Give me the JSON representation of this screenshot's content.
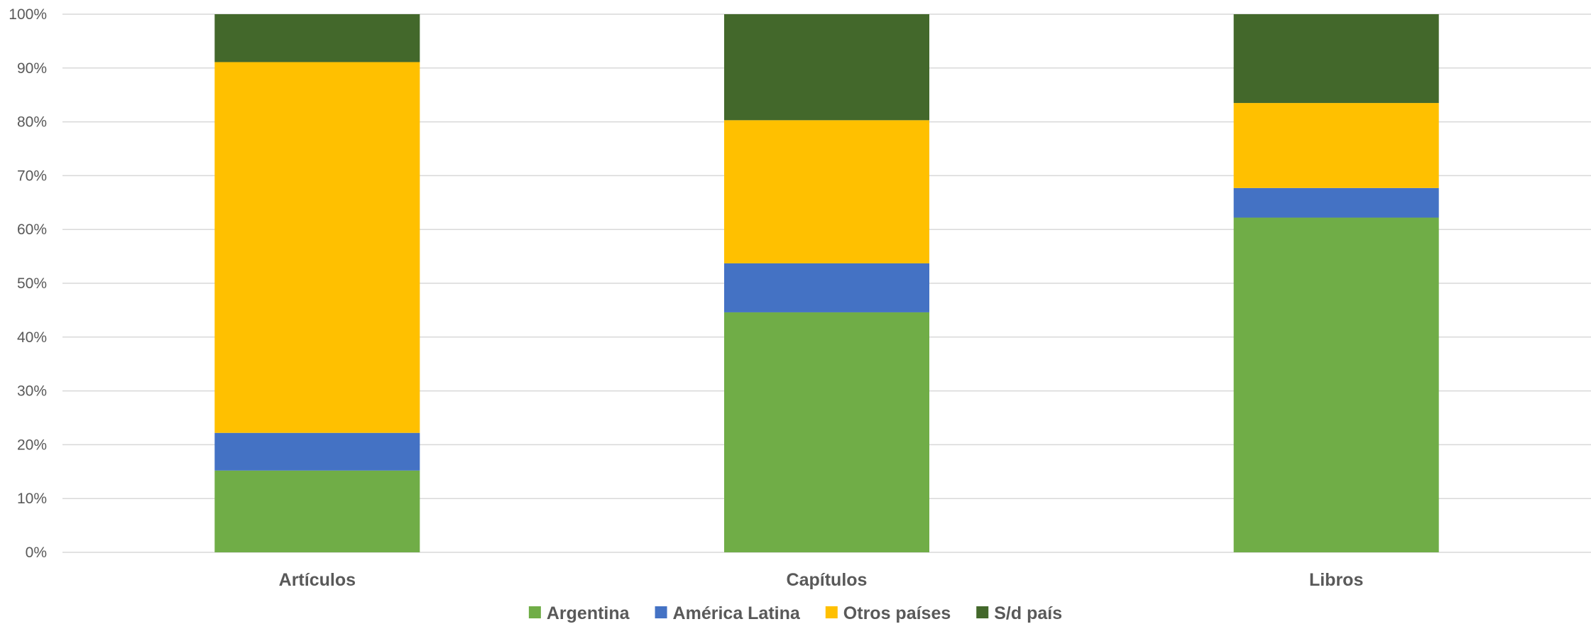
{
  "chart_data": {
    "type": "bar",
    "stacked": true,
    "percent": true,
    "categories": [
      "Artículos",
      "Capítulos",
      "Libros"
    ],
    "series": [
      {
        "name": "Argentina",
        "color": "#70AD47",
        "values": [
          15.2,
          44.6,
          62.2
        ]
      },
      {
        "name": "América Latina",
        "color": "#4472C4",
        "values": [
          7.0,
          9.1,
          5.5
        ]
      },
      {
        "name": "Otros países",
        "color": "#FFC000",
        "values": [
          68.9,
          26.6,
          15.8
        ]
      },
      {
        "name": "S/d país",
        "color": "#43682B",
        "values": [
          8.9,
          19.7,
          16.5
        ]
      }
    ],
    "ylim": [
      0,
      100
    ],
    "yticks": [
      "0%",
      "10%",
      "20%",
      "30%",
      "40%",
      "50%",
      "60%",
      "70%",
      "80%",
      "90%",
      "100%"
    ],
    "grid": true,
    "legend_position": "bottom"
  }
}
